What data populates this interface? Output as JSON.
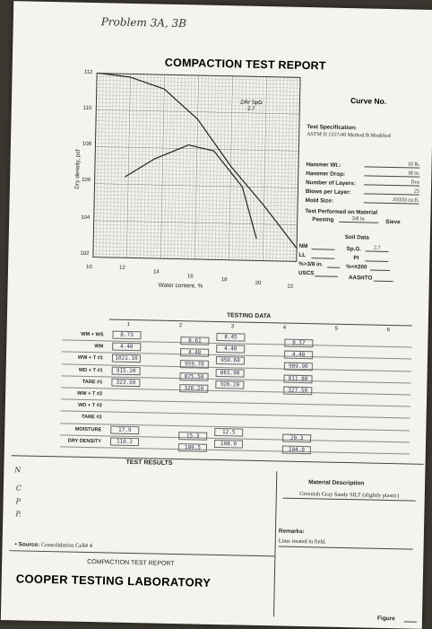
{
  "header": {
    "problem_note": "Problem 3A, 3B",
    "title": "COMPACTION TEST REPORT",
    "curve_label": "Curve No."
  },
  "chart": {
    "ylabel": "Dry density, pcf",
    "xlabel": "Water content, %",
    "y_ticks": [
      "112",
      "110",
      "108",
      "106",
      "104",
      "102"
    ],
    "x_ticks": [
      "10",
      "12",
      "14",
      "16",
      "18",
      "20",
      "22"
    ],
    "zav_label": "ZAV SpG",
    "zav_value": "2.7"
  },
  "chart_data": {
    "type": "line",
    "xlabel": "Water content, %",
    "ylabel": "Dry density, pcf",
    "xlim": [
      10,
      22
    ],
    "ylim": [
      102,
      112
    ],
    "grid": true,
    "series": [
      {
        "name": "",
        "x": [
          10.0,
          12.0,
          14.0,
          16.0,
          18.0,
          20.0,
          22.0
        ],
        "y": [
          112.0,
          111.8,
          111.2,
          109.6,
          107.1,
          105.0,
          102.7
        ]
      },
      {
        "name": "",
        "x": [
          11.8,
          13.5,
          15.5,
          17.0,
          18.7,
          19.6
        ],
        "y": [
          106.4,
          107.4,
          108.2,
          107.9,
          106.0,
          103.2
        ]
      }
    ]
  },
  "spec": {
    "test_spec_label": "Test Specification:",
    "test_spec_value": "ASTM D 1557-00 Method B Modified",
    "hammer_wt_label": "Hammer Wt.:",
    "hammer_wt_value": "10 lb.",
    "hammer_drop_label": "Hammer Drop:",
    "hammer_drop_value": "18 in.",
    "layers_label": "Number of Layers:",
    "layers_value": "five",
    "blows_label": "Blows per Layer:",
    "blows_value": "25",
    "mold_label": "Mold Size:",
    "mold_value": ".03333 cu.ft.",
    "performed_label": "Test Performed on Material",
    "passing_label": "Passing",
    "passing_value": "3/8 in.",
    "sieve_label": "Sieve"
  },
  "soil": {
    "title": "Soil Data",
    "nm": "NM",
    "spg_label": "Sp.G.",
    "spg_value": "2.7",
    "ll": "LL",
    "pi": "PI",
    "pct_38": "%>3/8 in.",
    "pct_200": "%<#200",
    "uscs": "USCS",
    "aashto": "AASHTO"
  },
  "testing": {
    "title": "TESTING DATA",
    "columns": [
      "1",
      "2",
      "3",
      "4",
      "5",
      "6"
    ],
    "row_labels": [
      "WM + WS",
      "WM",
      "WW + T #1",
      "WD + T #1",
      "TARE #1",
      "WW + T #2",
      "WD + T #2",
      "TARE #2",
      "MOISTURE",
      "DRY DENSITY"
    ],
    "rows": [
      [
        "8.73",
        "8.61",
        "8.45",
        "8.57",
        "",
        ""
      ],
      [
        "4.40",
        "4.40",
        "4.40",
        "4.40",
        "",
        ""
      ],
      [
        "1021.10",
        "959.70",
        "950.60",
        "909.90",
        "",
        ""
      ],
      [
        "915.20",
        "875.50",
        "861.00",
        "811.80",
        "",
        ""
      ],
      [
        "323.50",
        "326.20",
        "326.20",
        "327.50",
        "",
        ""
      ],
      [
        "",
        "",
        "",
        "",
        "",
        ""
      ],
      [
        "",
        "",
        "",
        "",
        "",
        ""
      ],
      [
        "",
        "",
        "",
        "",
        "",
        ""
      ],
      [
        "17.9",
        "15.3",
        "12.5",
        "20.3",
        "",
        ""
      ],
      [
        "110.2",
        "109.5",
        "108.0",
        "104.0",
        "",
        ""
      ]
    ]
  },
  "results": {
    "title": "TEST RESULTS",
    "side_letters": [
      "N",
      "C",
      "P",
      "P."
    ],
    "material_title": "Material Description",
    "material_value": "Greenish Gray Sandy SILT (slightly plastic)",
    "remarks_label": "Remarks:",
    "remarks_value": "Lime treated in field.",
    "source_label": "Source:",
    "source_value": "Consolidation Cell# 4",
    "footer_sub": "COMPACTION TEST REPORT",
    "lab_name": "COOPER TESTING LABORATORY",
    "figure_label": "Figure"
  },
  "colors": {
    "ink": "#222222",
    "pen": "#2a3550",
    "paper": "#f4f3ee"
  }
}
